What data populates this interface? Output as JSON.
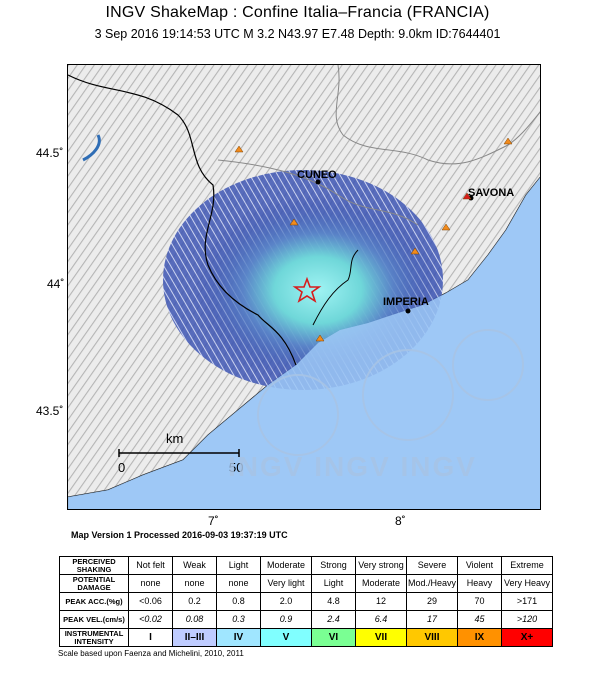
{
  "title": "INGV ShakeMap : Confine Italia–Francia (FRANCIA)",
  "subtitle": "3 Sep 2016 19:14:53 UTC   M 3.2   N43.97 E7.48   Depth: 9.0km   ID:7644401",
  "map": {
    "lat_ticks": [
      "44.5˚",
      "44˚",
      "43.5˚"
    ],
    "lon_ticks": [
      "7˚",
      "8˚"
    ],
    "cities": [
      "CUNEO",
      "SAVONA",
      "IMPERIA"
    ],
    "scale_unit": "km",
    "scale_labels": [
      "0",
      "50"
    ],
    "watermark": "INGV INGV INGV",
    "epicenter_icon": "star-icon",
    "station_icon": "triangle-icon",
    "colors": {
      "sea": "#9ec8f6",
      "land": "#e6e6e6",
      "border": "#000000",
      "epicenter": "#d81c1c"
    }
  },
  "version": "Map Version 1 Processed 2016-09-03 19:37:19 UTC",
  "legend": {
    "row_labels": [
      "PERCEIVED SHAKING",
      "POTENTIAL DAMAGE",
      "PEAK ACC.(%g)",
      "PEAK VEL.(cm/s)",
      "INSTRUMENTAL INTENSITY"
    ],
    "shaking": [
      "Not felt",
      "Weak",
      "Light",
      "Moderate",
      "Strong",
      "Very strong",
      "Severe",
      "Violent",
      "Extreme"
    ],
    "damage": [
      "none",
      "none",
      "none",
      "Very light",
      "Light",
      "Moderate",
      "Mod./Heavy",
      "Heavy",
      "Very Heavy"
    ],
    "acc": [
      "<0.06",
      "0.2",
      "0.8",
      "2.0",
      "4.8",
      "12",
      "29",
      "70",
      ">171"
    ],
    "vel": [
      "<0.02",
      "0.08",
      "0.3",
      "0.9",
      "2.4",
      "6.4",
      "17",
      "45",
      ">120"
    ],
    "intensity": [
      "I",
      "II–III",
      "IV",
      "V",
      "VI",
      "VII",
      "VIII",
      "IX",
      "X+"
    ],
    "intensity_colors": [
      "#ffffff",
      "#bfccff",
      "#a0e6ff",
      "#80ffff",
      "#7aff93",
      "#ffff00",
      "#ffc800",
      "#ff9100",
      "#ff0000"
    ]
  },
  "footer": "Scale based upon Faenza and Michelini, 2010, 2011"
}
